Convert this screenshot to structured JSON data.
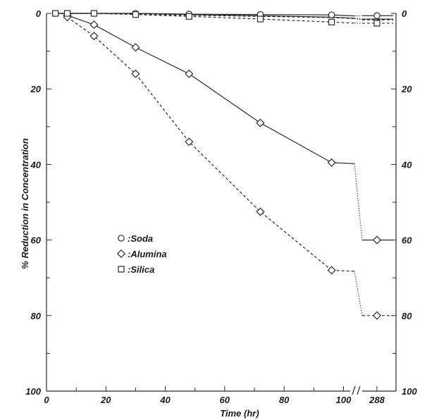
{
  "chart_data": {
    "type": "line",
    "xlabel": "Time (hr)",
    "ylabel": "% Reduction in Concentration",
    "x_ticks": [
      "0",
      "20",
      "40",
      "60",
      "80",
      "100",
      "288"
    ],
    "y_ticks": [
      "0",
      "20",
      "40",
      "60",
      "80",
      "100"
    ],
    "y_inverted": true,
    "ylim": [
      0,
      100
    ],
    "x_axis_break": true,
    "grid": false,
    "legend_position": "middle-left",
    "legend": [
      {
        "marker": "circle",
        "label": "Soda"
      },
      {
        "marker": "diamond",
        "label": "Alumina"
      },
      {
        "marker": "square",
        "label": "Silica"
      }
    ],
    "series": [
      {
        "marker": "circle",
        "line": "solid",
        "x": [
          3,
          7,
          16,
          30,
          48,
          72,
          96,
          288
        ],
        "y": [
          0,
          0,
          0,
          0,
          0.2,
          0.3,
          0.4,
          0.6
        ]
      },
      {
        "marker": "circle",
        "line": "dashed",
        "x": [
          3,
          7,
          16,
          30,
          48,
          72,
          96,
          288
        ],
        "y": [
          0,
          0,
          0,
          0.2,
          0.5,
          0.8,
          1.1,
          1.7
        ]
      },
      {
        "marker": "diamond",
        "line": "solid",
        "x": [
          7,
          16,
          30,
          48,
          72,
          96,
          288
        ],
        "y": [
          0.5,
          3,
          9,
          16,
          29,
          39.5,
          60
        ]
      },
      {
        "marker": "diamond",
        "line": "dashed",
        "x": [
          7,
          16,
          30,
          48,
          72,
          96,
          288
        ],
        "y": [
          1,
          6,
          16,
          34,
          52.5,
          68,
          80
        ]
      },
      {
        "marker": "square",
        "line": "solid",
        "x": [
          3,
          7,
          16,
          30,
          48,
          72,
          96,
          288
        ],
        "y": [
          0,
          0,
          0,
          0,
          0.3,
          0.6,
          1,
          1.5
        ]
      },
      {
        "marker": "square",
        "line": "dashed",
        "x": [
          3,
          7,
          16,
          30,
          48,
          72,
          96,
          288
        ],
        "y": [
          0,
          0,
          0,
          0.3,
          0.8,
          1.5,
          2.3,
          2.6
        ]
      }
    ]
  }
}
